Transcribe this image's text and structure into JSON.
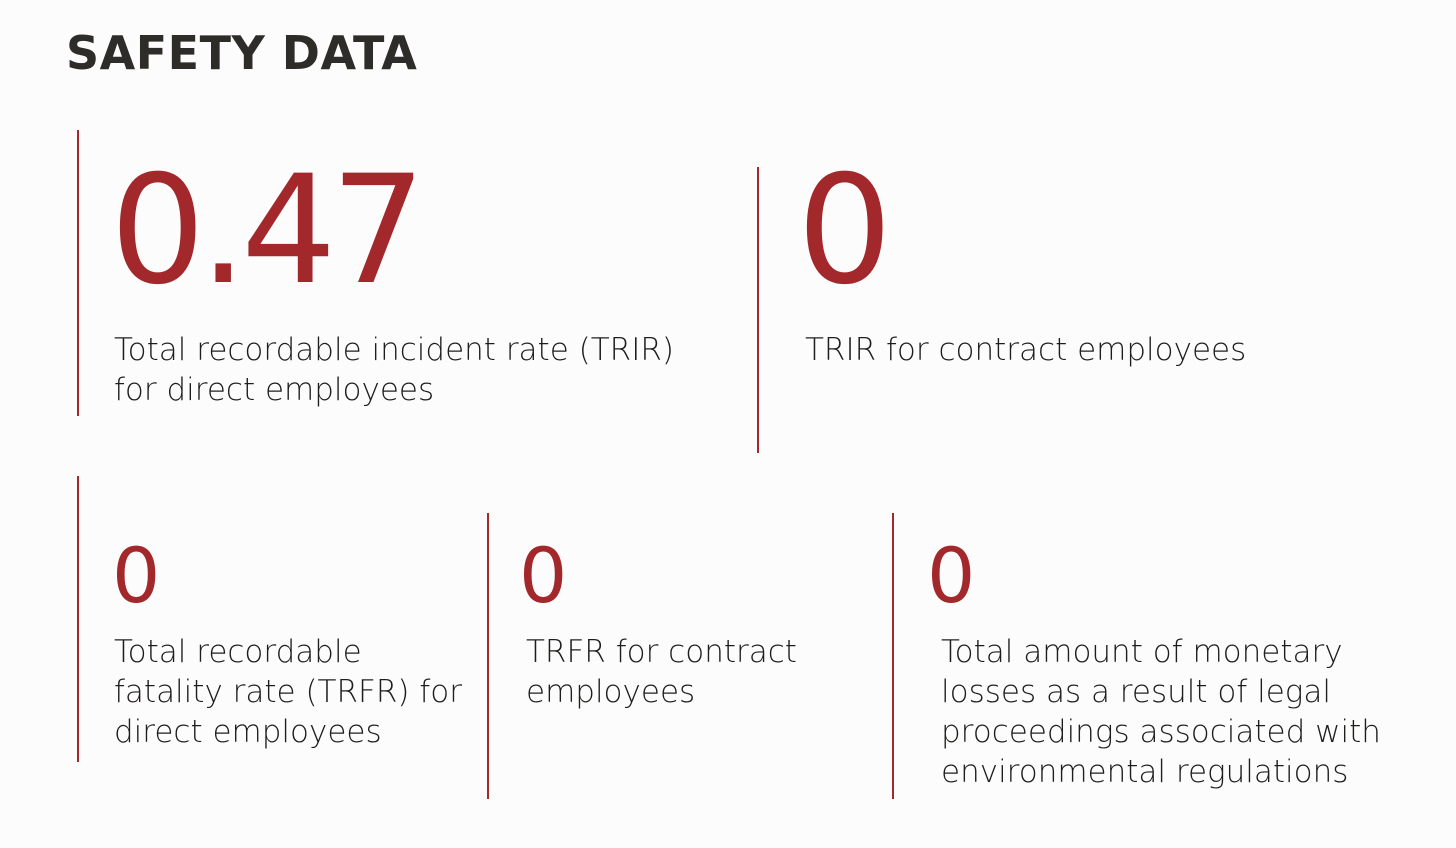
{
  "title": "SAFETY DATA",
  "accent_color": "#a3282b",
  "metrics": [
    {
      "value": "0.47",
      "label": "Total recordable incident rate (TRIR)\nfor direct employees"
    },
    {
      "value": "0",
      "label": "TRIR for contract employees"
    },
    {
      "value": "0",
      "label": "Total recordable\nfatality rate (TRFR) for\ndirect employees"
    },
    {
      "value": "0",
      "label": " TRFR for contract\nemployees"
    },
    {
      "value": "0",
      "label": "Total amount of monetary\nlosses as a result of legal\nproceedings associated with\nenvironmental regulations"
    }
  ]
}
